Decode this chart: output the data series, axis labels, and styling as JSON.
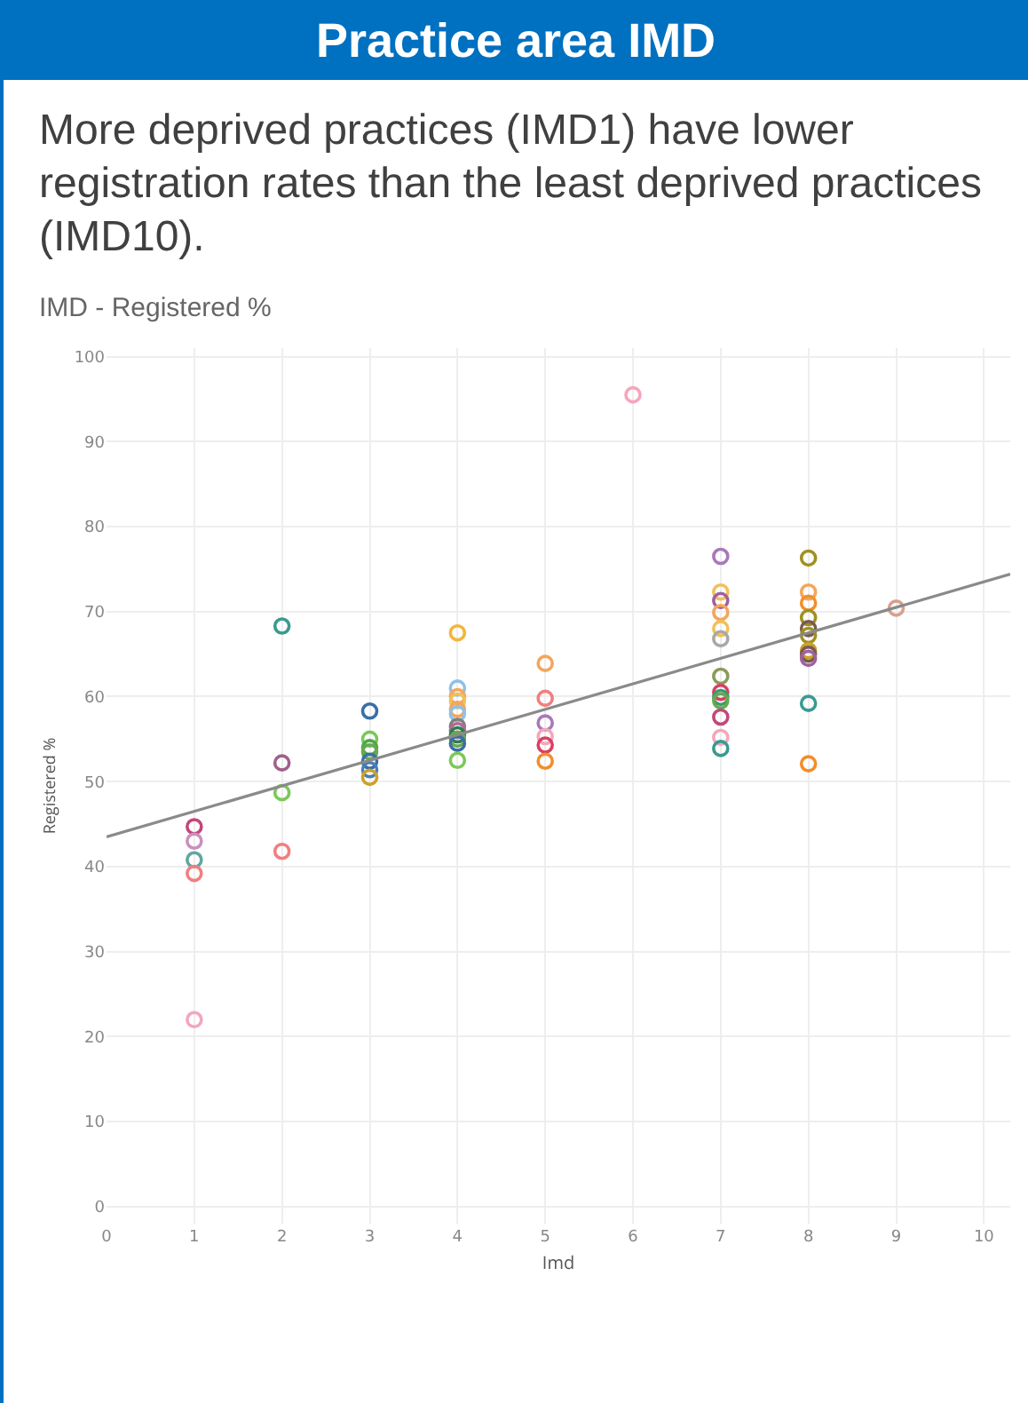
{
  "chart_data": {
    "type": "scatter",
    "title": "Practice area IMD",
    "subtitle": "More deprived practices (IMD1) have lower registration rates than the least deprived practices (IMD10).",
    "annotations": [
      "IMD - Registered %"
    ],
    "xlabel": "Imd",
    "ylabel": "Registered %",
    "xlim": [
      0,
      10.3
    ],
    "xticks": [
      0,
      1,
      2,
      3,
      4,
      5,
      6,
      7,
      8,
      9,
      10
    ],
    "ylim": [
      -2,
      101
    ],
    "yticks": [
      0,
      10,
      20,
      30,
      40,
      50,
      60,
      70,
      80,
      90,
      100
    ],
    "grid": true,
    "marker": "circle",
    "series": [
      {
        "x": [
          1,
          1,
          1,
          1,
          1,
          2,
          2,
          2,
          2,
          3,
          3,
          3,
          3,
          3,
          3,
          3,
          4,
          4,
          4,
          4,
          4,
          4,
          4,
          4,
          4,
          4,
          4,
          4,
          5,
          5,
          5,
          5,
          5,
          5,
          6,
          7,
          7,
          7,
          7,
          7,
          7,
          7,
          7,
          7,
          7,
          7,
          7,
          7,
          8,
          8,
          8,
          8,
          8,
          8,
          8,
          8,
          8,
          8,
          8,
          9
        ],
        "values": [
          44.7,
          43,
          40.8,
          39.2,
          22,
          68.3,
          52.2,
          48.7,
          41.8,
          58.3,
          55,
          54,
          53.5,
          52.4,
          51.4,
          50.5,
          67.5,
          61,
          60,
          59.5,
          58.5,
          58,
          56.5,
          56,
          55.5,
          55,
          54.5,
          52.5,
          63.9,
          59.8,
          56.9,
          55.3,
          54.3,
          52.4,
          95.5,
          76.5,
          72.3,
          71.3,
          69.9,
          68,
          66.8,
          62.4,
          60.5,
          59.9,
          59.5,
          57.6,
          55.2,
          53.9,
          76.3,
          72.3,
          71,
          69.3,
          68,
          67.2,
          65.4,
          65,
          64.5,
          59.2,
          52.1,
          70.4
        ],
        "colors": [
          "#c2477a",
          "#c990c0",
          "#5fa8a0",
          "#f08080",
          "#f4a6bd",
          "#3a9a90",
          "#a0608a",
          "#7cc85a",
          "#f08080",
          "#3a6ea8",
          "#7cc85a",
          "#4ca84c",
          "#6aa84f",
          "#3a6ea8",
          "#4a7eb8",
          "#c9a227",
          "#f2b63c",
          "#8ec1e8",
          "#f4a65c",
          "#f2c05a",
          "#f4a65c",
          "#8ec1e8",
          "#7f7f7f",
          "#b06a9a",
          "#2e7d4f",
          "#6aa84f",
          "#3a6ea8",
          "#7cc85a",
          "#f4a65c",
          "#f08080",
          "#a878b8",
          "#f4a6bd",
          "#d94060",
          "#f28e2b",
          "#f4a6bd",
          "#a878b8",
          "#f2c05a",
          "#a060a0",
          "#f4a65c",
          "#f2c05a",
          "#a8a8a8",
          "#8c9a5a",
          "#d94060",
          "#3a9a70",
          "#6aa84f",
          "#c2477a",
          "#f4a6bd",
          "#3a9a90",
          "#a09020",
          "#f4a65c",
          "#f28e2b",
          "#a09020",
          "#7a5a50",
          "#a09020",
          "#c9a227",
          "#7a5a50",
          "#a060a0",
          "#3a9a90",
          "#f28e2b",
          "#d8a090"
        ]
      },
      {
        "type": "line",
        "x": [
          0,
          10.3
        ],
        "values": [
          43.5,
          74.4
        ],
        "color": "#8a8a8a",
        "line_style": "solid",
        "marker": "none"
      }
    ]
  }
}
